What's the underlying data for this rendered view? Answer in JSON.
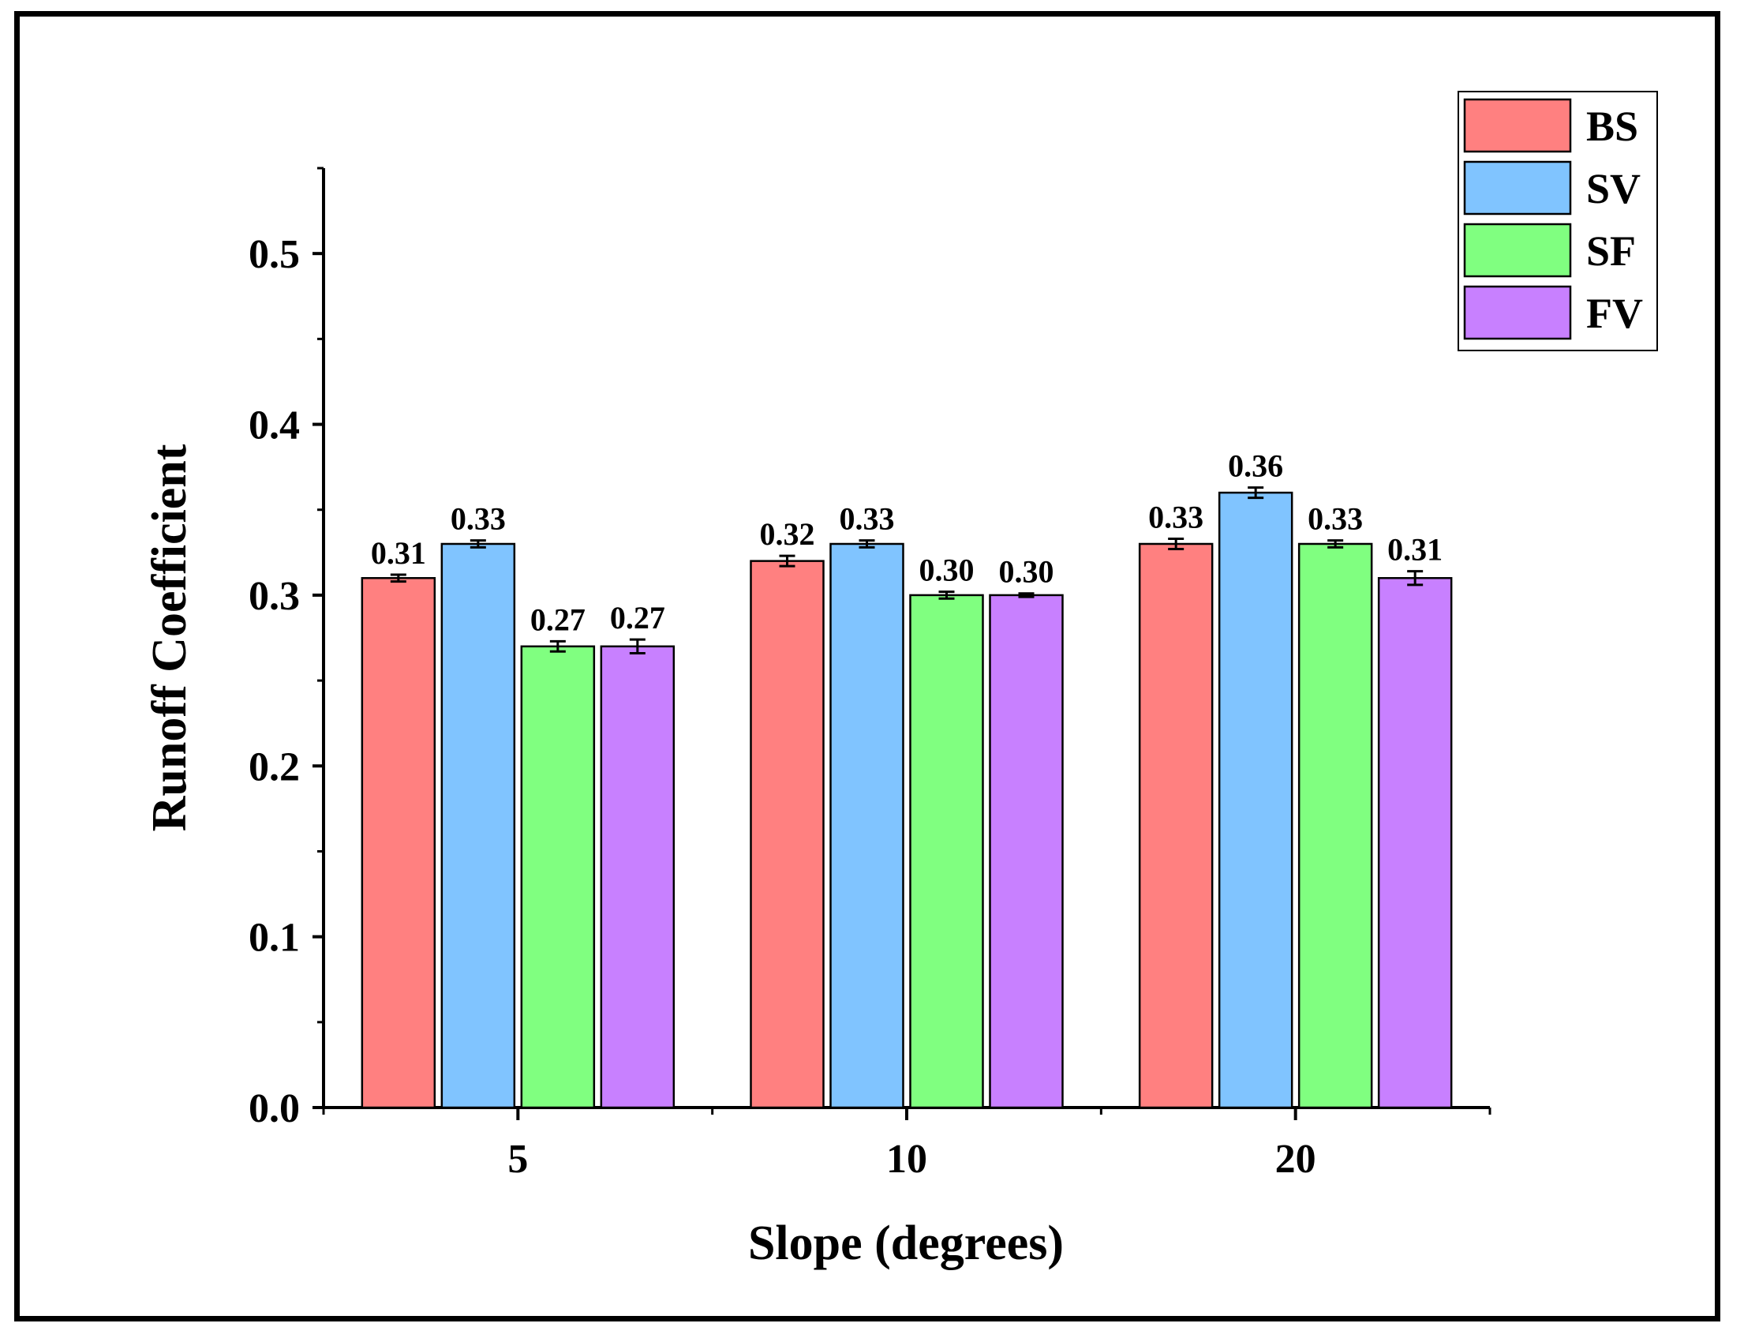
{
  "chart_data": {
    "type": "bar",
    "title": "",
    "xlabel": "Slope (degrees)",
    "ylabel": "Runoff Coefficient",
    "categories": [
      "5",
      "10",
      "20"
    ],
    "ylim": [
      0,
      0.55
    ],
    "yticks": [
      0.0,
      0.1,
      0.2,
      0.3,
      0.4,
      0.5
    ],
    "ytick_labels": [
      "0.0",
      "0.1",
      "0.2",
      "0.3",
      "0.4",
      "0.5"
    ],
    "legend_position": "top-right",
    "series": [
      {
        "name": "BS",
        "color": "#ff8080",
        "values": [
          0.31,
          0.32,
          0.33
        ],
        "errors": [
          0.002,
          0.003,
          0.003
        ],
        "labels": [
          "0.31",
          "0.32",
          "0.33"
        ]
      },
      {
        "name": "SV",
        "color": "#80c4ff",
        "values": [
          0.33,
          0.33,
          0.36
        ],
        "errors": [
          0.002,
          0.002,
          0.003
        ],
        "labels": [
          "0.33",
          "0.33",
          "0.36"
        ]
      },
      {
        "name": "SF",
        "color": "#80ff80",
        "values": [
          0.27,
          0.3,
          0.33
        ],
        "errors": [
          0.003,
          0.002,
          0.002
        ],
        "labels": [
          "0.27",
          "0.30",
          "0.33"
        ]
      },
      {
        "name": "FV",
        "color": "#c880ff",
        "values": [
          0.27,
          0.3,
          0.31
        ],
        "errors": [
          0.004,
          0.001,
          0.004
        ],
        "labels": [
          "0.27",
          "0.30",
          "0.31"
        ]
      }
    ]
  }
}
